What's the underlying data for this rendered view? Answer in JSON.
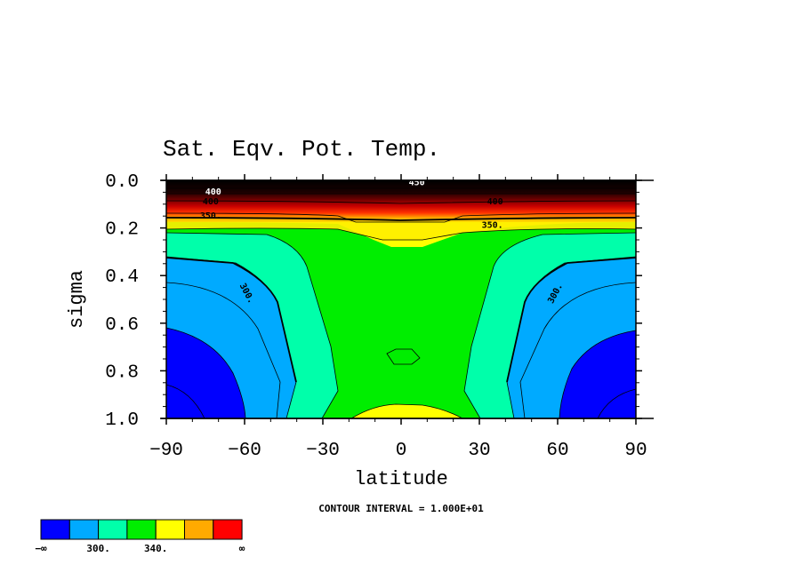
{
  "chart_data": {
    "type": "heatmap",
    "title": "Sat. Eqv. Pot. Temp.",
    "xlabel": "latitude",
    "ylabel": "sigma",
    "xlim": [
      -90,
      90
    ],
    "ylim": [
      1.0,
      0.0
    ],
    "y_inverted": true,
    "x_ticks": [
      -90,
      -60,
      -30,
      0,
      30,
      60,
      90
    ],
    "x_tick_labels": [
      "−90",
      "−60",
      "−30",
      "0",
      "30",
      "60",
      "90"
    ],
    "y_ticks": [
      0.0,
      0.2,
      0.4,
      0.6,
      0.8,
      1.0
    ],
    "y_tick_labels": [
      "0.0",
      "0.2",
      "0.4",
      "0.6",
      "0.8",
      "1.0"
    ],
    "grid": false,
    "contour_interval": 10,
    "contour_interval_text": "CONTOUR INTERVAL = 1.000E+01",
    "contour_labels": [
      {
        "text": "400",
        "x": -72,
        "y": 0.06
      },
      {
        "text": "400",
        "x": -73,
        "y": 0.1
      },
      {
        "text": "350.",
        "x": -73,
        "y": 0.16
      },
      {
        "text": "450",
        "x": 6,
        "y": 0.02
      },
      {
        "text": "400",
        "x": 36,
        "y": 0.1
      },
      {
        "text": "350.",
        "x": 35,
        "y": 0.2
      },
      {
        "text": "300.",
        "x": -60,
        "y": 0.48
      },
      {
        "text": "300.",
        "x": 60,
        "y": 0.48
      }
    ],
    "color_levels": [
      {
        "range": "< 290",
        "color": "#0000ff"
      },
      {
        "range": "290-300",
        "color": "#00aaff"
      },
      {
        "range": "300-320",
        "color": "#00ffaa"
      },
      {
        "range": "320-340",
        "color": "#00ee00"
      },
      {
        "range": "340-360",
        "color": "#ffff00"
      },
      {
        "range": "360-380",
        "color": "#ffaa00"
      },
      {
        "range": "> 380",
        "color": "#ff0000"
      }
    ],
    "colorbar_labels": [
      "−∞",
      "300.",
      "340.",
      "∞"
    ],
    "regions": [
      {
        "name": "deep-blue-south",
        "approx_lat": [
          -90,
          -67
        ],
        "approx_sigma": [
          0.62,
          1.0
        ],
        "level": "< 290"
      },
      {
        "name": "deep-blue-north",
        "approx_lat": [
          60,
          90
        ],
        "approx_sigma": [
          0.63,
          1.0
        ],
        "level": "< 290"
      },
      {
        "name": "equatorial-yellow-upper",
        "approx_lat": [
          -10,
          12
        ],
        "approx_sigma": [
          0.19,
          0.28
        ],
        "level": "340-360"
      },
      {
        "name": "equatorial-yellow-surface",
        "approx_lat": [
          -20,
          24
        ],
        "approx_sigma": [
          0.95,
          1.0
        ],
        "level": "340-360"
      },
      {
        "name": "stratospheric-gradient",
        "approx_lat": [
          -90,
          90
        ],
        "approx_sigma": [
          0.0,
          0.17
        ],
        "level": "> 380"
      }
    ]
  }
}
